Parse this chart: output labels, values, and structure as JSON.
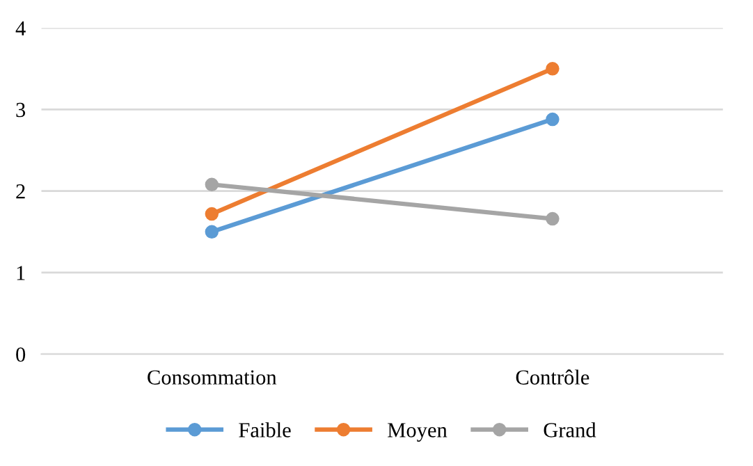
{
  "chart_data": {
    "type": "line",
    "categories": [
      "Consommation",
      "Contrôle"
    ],
    "series": [
      {
        "name": "Faible",
        "color": "#5b9bd5",
        "values": [
          1.5,
          2.88
        ]
      },
      {
        "name": "Moyen",
        "color": "#ed7d31",
        "values": [
          1.72,
          3.5
        ]
      },
      {
        "name": "Grand",
        "color": "#a5a5a5",
        "values": [
          2.08,
          1.66
        ]
      }
    ],
    "ylim": [
      0,
      4
    ],
    "yticks": [
      0,
      1,
      2,
      3,
      4
    ],
    "grid": "y",
    "legend": "bottom",
    "marker": "circle",
    "line_style": "solid"
  }
}
